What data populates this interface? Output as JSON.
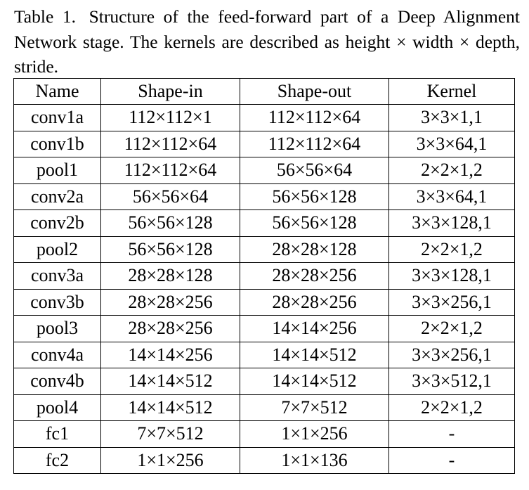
{
  "caption": {
    "label": "Table 1.",
    "text": "Structure of the feed-forward part of a Deep Alignment Network stage. The kernels are described as height × width × depth, stride."
  },
  "table": {
    "headers": [
      "Name",
      "Shape-in",
      "Shape-out",
      "Kernel"
    ],
    "rows": [
      [
        "conv1a",
        "112×112×1",
        "112×112×64",
        "3×3×1,1"
      ],
      [
        "conv1b",
        "112×112×64",
        "112×112×64",
        "3×3×64,1"
      ],
      [
        "pool1",
        "112×112×64",
        "56×56×64",
        "2×2×1,2"
      ],
      [
        "conv2a",
        "56×56×64",
        "56×56×128",
        "3×3×64,1"
      ],
      [
        "conv2b",
        "56×56×128",
        "56×56×128",
        "3×3×128,1"
      ],
      [
        "pool2",
        "56×56×128",
        "28×28×128",
        "2×2×1,2"
      ],
      [
        "conv3a",
        "28×28×128",
        "28×28×256",
        "3×3×128,1"
      ],
      [
        "conv3b",
        "28×28×256",
        "28×28×256",
        "3×3×256,1"
      ],
      [
        "pool3",
        "28×28×256",
        "14×14×256",
        "2×2×1,2"
      ],
      [
        "conv4a",
        "14×14×256",
        "14×14×512",
        "3×3×256,1"
      ],
      [
        "conv4b",
        "14×14×512",
        "14×14×512",
        "3×3×512,1"
      ],
      [
        "pool4",
        "14×14×512",
        "7×7×512",
        "2×2×1,2"
      ],
      [
        "fc1",
        "7×7×512",
        "1×1×256",
        "-"
      ],
      [
        "fc2",
        "1×1×256",
        "1×1×136",
        "-"
      ]
    ]
  }
}
